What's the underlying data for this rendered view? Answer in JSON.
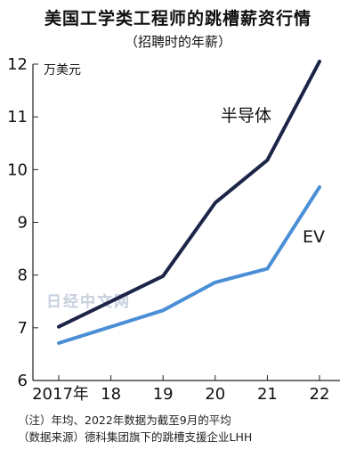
{
  "chart_data": {
    "type": "line",
    "title": "美国工学类工程师的跳槽薪资行情",
    "subtitle": "（招聘时的年薪）",
    "unit_label": "万美元",
    "categories": [
      "2017年",
      "18",
      "19",
      "20",
      "21",
      "22"
    ],
    "ylim": [
      6,
      12
    ],
    "yticks": [
      6,
      7,
      8,
      9,
      10,
      11,
      12
    ],
    "grid": false,
    "series": [
      {
        "name": "半导体",
        "values": [
          7.02,
          7.5,
          7.98,
          9.37,
          10.18,
          12.05
        ],
        "color": "#1c2448"
      },
      {
        "name": "EV",
        "values": [
          6.71,
          7.02,
          7.33,
          7.86,
          8.12,
          9.67
        ],
        "color": "#4a8fd6"
      }
    ]
  },
  "watermark": "日经中文网",
  "notes": [
    "（注）年均、2022年数据为截至9月的平均",
    "（数据来源）德科集团旗下的跳槽支援企业LHH"
  ]
}
